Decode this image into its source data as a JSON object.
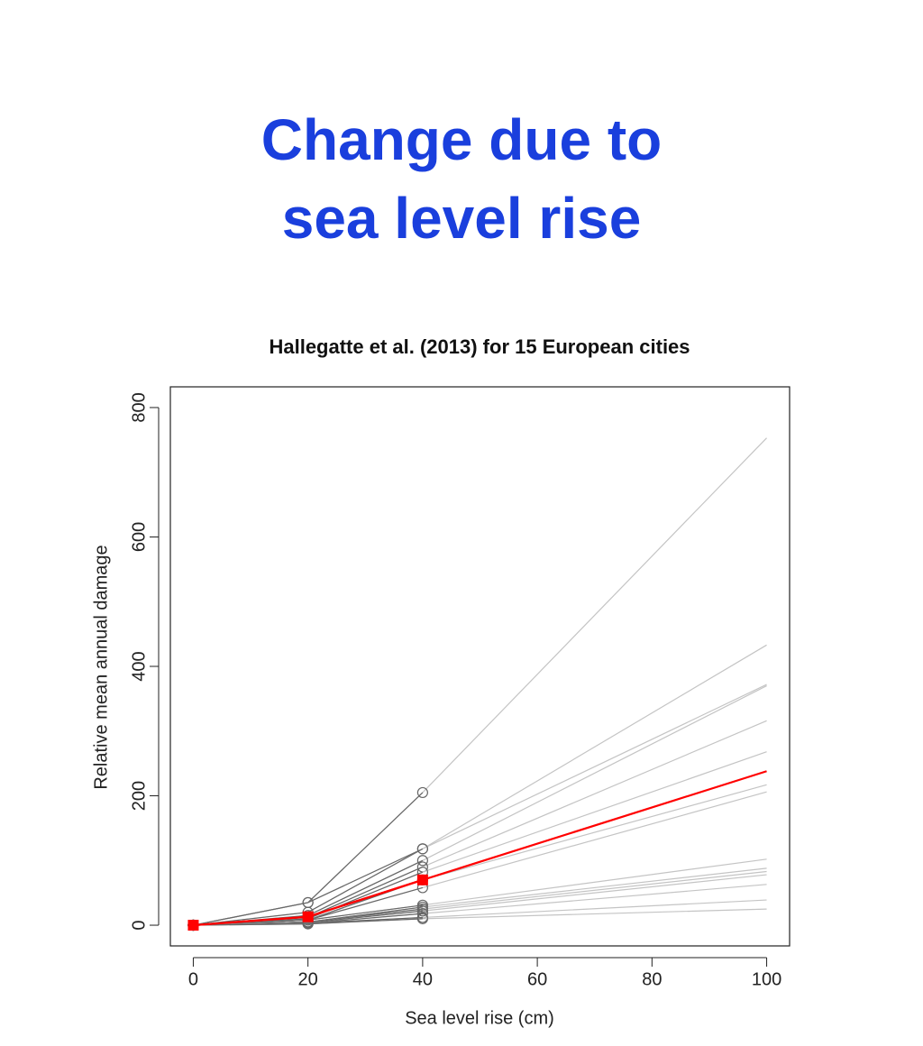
{
  "slide": {
    "title": [
      "Change due to",
      "sea level rise"
    ]
  },
  "chart_data": {
    "type": "line",
    "title": "Hallegatte et al. (2013) for 15 European cities",
    "x_label": "Sea level rise (cm)",
    "y_label": "Relative mean annual damage",
    "x": [
      0,
      20,
      40,
      100
    ],
    "xlim": [
      -4,
      104
    ],
    "xticks": [
      0,
      20,
      40,
      60,
      80,
      100
    ],
    "ylim": [
      -32,
      832
    ],
    "yticks": [
      0,
      200,
      400,
      600,
      800
    ],
    "marker_color": "#666666",
    "extension_color": "#c4c4c4",
    "series": [
      {
        "values": [
          0,
          35,
          205,
          753
        ]
      },
      {
        "values": [
          0,
          35,
          118,
          433
        ]
      },
      {
        "values": [
          0,
          20,
          118,
          372
        ]
      },
      {
        "values": [
          0,
          15,
          100,
          370
        ]
      },
      {
        "values": [
          0,
          12,
          90,
          316
        ]
      },
      {
        "values": [
          0,
          10,
          82,
          268
        ]
      },
      {
        "values": [
          0,
          8,
          70,
          217
        ]
      },
      {
        "values": [
          0,
          8,
          58,
          206
        ]
      },
      {
        "values": [
          0,
          8,
          31,
          102
        ]
      },
      {
        "values": [
          0,
          5,
          28,
          88
        ]
      },
      {
        "values": [
          0,
          5,
          25,
          83
        ]
      },
      {
        "values": [
          0,
          4,
          22,
          78
        ]
      },
      {
        "values": [
          0,
          3,
          18,
          63
        ]
      },
      {
        "values": [
          0,
          3,
          12,
          39
        ]
      },
      {
        "values": [
          0,
          2,
          10,
          25
        ]
      },
      {
        "values": [
          0,
          13,
          70,
          238
        ],
        "color": "#ff0000"
      }
    ]
  }
}
